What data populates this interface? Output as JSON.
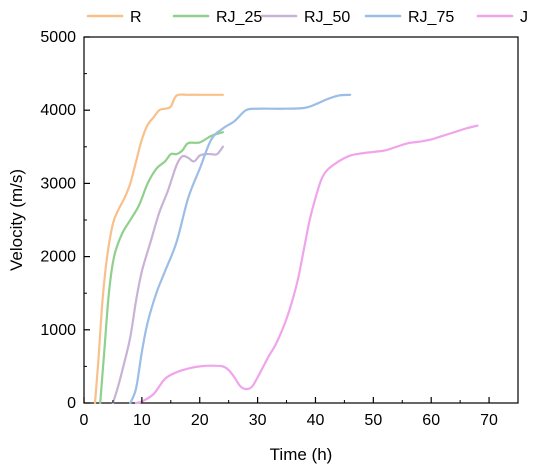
{
  "chart_data": {
    "type": "line",
    "xlabel": "Time (h)",
    "ylabel": "Velocity (m/s)",
    "xlim": [
      0,
      75
    ],
    "ylim": [
      0,
      5000
    ],
    "xticks": [
      0,
      10,
      20,
      30,
      40,
      50,
      60,
      70
    ],
    "yticks": [
      0,
      1000,
      2000,
      3000,
      4000,
      5000
    ],
    "xtick_labels": [
      "0",
      "10",
      "20",
      "30",
      "40",
      "50",
      "60",
      "70"
    ],
    "ytick_labels": [
      "0",
      "1000",
      "2000",
      "3000",
      "4000",
      "5000"
    ],
    "grid": false,
    "legend_position": "top",
    "series": [
      {
        "name": "R",
        "color": "#f9c08b",
        "points": [
          [
            1.9,
            0
          ],
          [
            2.5,
            600
          ],
          [
            3.2,
            1400
          ],
          [
            4,
            2000
          ],
          [
            5,
            2450
          ],
          [
            6,
            2650
          ],
          [
            7,
            2800
          ],
          [
            8,
            3000
          ],
          [
            9,
            3300
          ],
          [
            10,
            3600
          ],
          [
            11,
            3800
          ],
          [
            12,
            3900
          ],
          [
            13,
            4000
          ],
          [
            14,
            4020
          ],
          [
            15,
            4050
          ],
          [
            16,
            4200
          ],
          [
            18,
            4210
          ],
          [
            21,
            4210
          ],
          [
            24,
            4210
          ]
        ]
      },
      {
        "name": "RJ_25",
        "color": "#8fd18c",
        "points": [
          [
            2.8,
            0
          ],
          [
            3.5,
            700
          ],
          [
            4.3,
            1500
          ],
          [
            5.2,
            2000
          ],
          [
            6.5,
            2300
          ],
          [
            8,
            2500
          ],
          [
            9.5,
            2700
          ],
          [
            11,
            3000
          ],
          [
            12.5,
            3200
          ],
          [
            14,
            3300
          ],
          [
            15,
            3400
          ],
          [
            16,
            3400
          ],
          [
            17,
            3450
          ],
          [
            18,
            3550
          ],
          [
            20,
            3560
          ],
          [
            22,
            3650
          ],
          [
            24,
            3700
          ]
        ]
      },
      {
        "name": "RJ_50",
        "color": "#c8b2d6",
        "points": [
          [
            5,
            0
          ],
          [
            5.8,
            200
          ],
          [
            6.8,
            500
          ],
          [
            8,
            900
          ],
          [
            9,
            1400
          ],
          [
            10,
            1800
          ],
          [
            11.5,
            2200
          ],
          [
            13,
            2600
          ],
          [
            14.5,
            2900
          ],
          [
            16,
            3250
          ],
          [
            17,
            3370
          ],
          [
            18,
            3350
          ],
          [
            19,
            3300
          ],
          [
            20,
            3380
          ],
          [
            21,
            3400
          ],
          [
            22,
            3400
          ],
          [
            23,
            3400
          ],
          [
            24,
            3500
          ]
        ]
      },
      {
        "name": "RJ_75",
        "color": "#9bbde6",
        "points": [
          [
            8,
            0
          ],
          [
            9,
            200
          ],
          [
            10,
            700
          ],
          [
            11,
            1100
          ],
          [
            12.5,
            1500
          ],
          [
            14,
            1800
          ],
          [
            16,
            2200
          ],
          [
            18,
            2800
          ],
          [
            20,
            3200
          ],
          [
            22,
            3600
          ],
          [
            24,
            3750
          ],
          [
            26,
            3850
          ],
          [
            28,
            4000
          ],
          [
            30,
            4020
          ],
          [
            34,
            4020
          ],
          [
            38,
            4030
          ],
          [
            40,
            4080
          ],
          [
            42,
            4150
          ],
          [
            44,
            4200
          ],
          [
            46,
            4210
          ]
        ]
      },
      {
        "name": "J",
        "color": "#f0a4ec",
        "points": [
          [
            9,
            0
          ],
          [
            10,
            20
          ],
          [
            12,
            120
          ],
          [
            14,
            330
          ],
          [
            16,
            420
          ],
          [
            18,
            470
          ],
          [
            20,
            500
          ],
          [
            22,
            510
          ],
          [
            24,
            500
          ],
          [
            25,
            450
          ],
          [
            26,
            350
          ],
          [
            27,
            230
          ],
          [
            28,
            190
          ],
          [
            29,
            220
          ],
          [
            30,
            350
          ],
          [
            31,
            500
          ],
          [
            32,
            650
          ],
          [
            33,
            780
          ],
          [
            34,
            950
          ],
          [
            35,
            1150
          ],
          [
            36,
            1400
          ],
          [
            37,
            1700
          ],
          [
            38,
            2100
          ],
          [
            39,
            2500
          ],
          [
            40,
            2800
          ],
          [
            41,
            3050
          ],
          [
            42,
            3180
          ],
          [
            44,
            3300
          ],
          [
            46,
            3380
          ],
          [
            48,
            3410
          ],
          [
            50,
            3430
          ],
          [
            52,
            3450
          ],
          [
            54,
            3500
          ],
          [
            56,
            3550
          ],
          [
            58,
            3570
          ],
          [
            60,
            3600
          ],
          [
            62,
            3650
          ],
          [
            64,
            3700
          ],
          [
            66,
            3750
          ],
          [
            68,
            3790
          ]
        ]
      }
    ]
  }
}
